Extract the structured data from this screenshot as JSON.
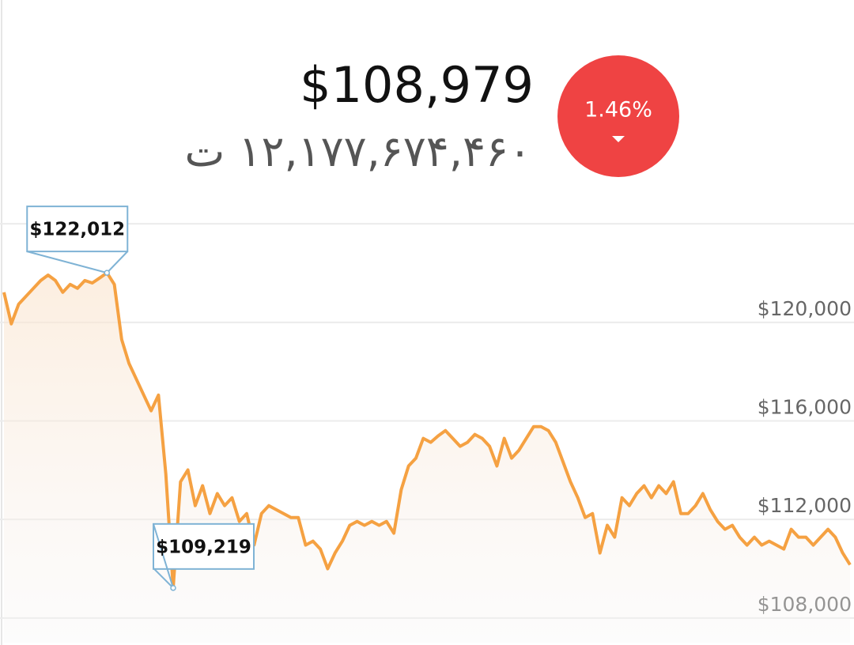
{
  "header": {
    "price": "$108,979",
    "toman": "۱۲,۱۷۷,۶۷۴,۴۶۰ ت",
    "change": "1.46%",
    "change_direction": "down"
  },
  "chart_data": {
    "type": "line",
    "color": "#f5a142",
    "values": [
      121220,
      119940,
      120740,
      121060,
      121380,
      121700,
      121920,
      121700,
      121220,
      121540,
      121380,
      121700,
      121600,
      121800,
      122012,
      121540,
      119300,
      118330,
      117690,
      117050,
      116410,
      117050,
      113850,
      109219,
      113530,
      114010,
      112560,
      113370,
      112240,
      113050,
      112560,
      112880,
      111920,
      112240,
      110960,
      112240,
      112560,
      112400,
      112240,
      112080,
      112080,
      110960,
      111120,
      110800,
      110000,
      110640,
      111120,
      111760,
      111920,
      111760,
      111920,
      111760,
      111920,
      111440,
      113210,
      114170,
      114490,
      115290,
      115130,
      115390,
      115610,
      115290,
      114970,
      115130,
      115450,
      115290,
      114970,
      114170,
      115290,
      114490,
      114810,
      115290,
      115770,
      115770,
      115610,
      115130,
      114330,
      113530,
      112880,
      112080,
      112240,
      110640,
      111760,
      111280,
      112880,
      112560,
      113050,
      113370,
      112880,
      113370,
      113050,
      113530,
      112240,
      112240,
      112560,
      113050,
      112400,
      111920,
      111600,
      111760,
      111280,
      110960,
      111280,
      110960,
      111120,
      110960,
      110800,
      111600,
      111280,
      111280,
      110960,
      111280,
      111600,
      111280,
      110640,
      110160
    ],
    "ylim": [
      107000,
      125000
    ],
    "yticks": [
      {
        "value": 108000,
        "label": "$108,000"
      },
      {
        "value": 112000,
        "label": "$112,000"
      },
      {
        "value": 116000,
        "label": "$116,000"
      },
      {
        "value": 120000,
        "label": "$120,000"
      }
    ],
    "grid_lines": [
      108000,
      112000,
      116000,
      120000,
      124000
    ],
    "annotations": [
      {
        "label": "$122,012",
        "value": 122012
      },
      {
        "label": "$109,219",
        "value": 109219
      }
    ]
  }
}
